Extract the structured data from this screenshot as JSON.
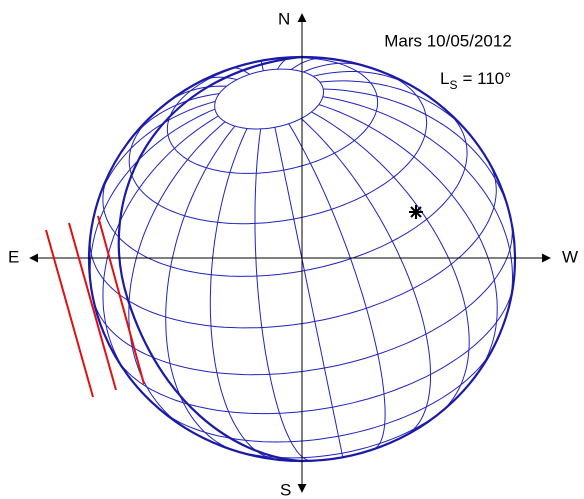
{
  "labels": {
    "north": "N",
    "south": "S",
    "east": "E",
    "west": "W"
  },
  "title": "Mars 10/05/2012",
  "ls": {
    "symbol": "L",
    "subscript": "S",
    "value": "= 110°"
  }
}
